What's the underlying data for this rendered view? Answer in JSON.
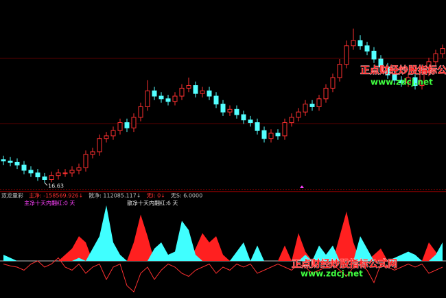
{
  "chart_data": [
    {
      "type": "candlestick",
      "categories": [
        null,
        null,
        null,
        null,
        null,
        null,
        null,
        null,
        null,
        null,
        null,
        null,
        null,
        null,
        null,
        null,
        null,
        null,
        null,
        null,
        null,
        null,
        null,
        null,
        null,
        null,
        null,
        null,
        null,
        null,
        null,
        null,
        null,
        null,
        null,
        null,
        null,
        null,
        null,
        null,
        null,
        null,
        null,
        null,
        null,
        null,
        null,
        null,
        null,
        null,
        null,
        null,
        null,
        null,
        null,
        null,
        null,
        null,
        null,
        null,
        null,
        null,
        null,
        null,
        null
      ],
      "open": [
        17.5,
        17.45,
        17.4,
        17.3,
        17.1,
        17.0,
        16.85,
        16.75,
        16.9,
        17.0,
        17.0,
        17.1,
        17.2,
        17.7,
        17.8,
        18.3,
        18.4,
        18.6,
        18.9,
        18.7,
        19.1,
        19.5,
        20.1,
        19.9,
        19.8,
        19.7,
        19.9,
        20.2,
        20.3,
        20.0,
        20.1,
        19.9,
        19.6,
        19.3,
        19.4,
        19.2,
        19.0,
        18.9,
        18.6,
        18.3,
        18.5,
        18.4,
        18.9,
        19.1,
        19.3,
        19.6,
        19.5,
        19.8,
        20.2,
        20.6,
        21.1,
        21.8,
        22.0,
        21.8,
        21.6,
        21.3,
        21.0,
        20.7,
        20.5,
        20.4,
        20.6,
        20.3,
        20.8,
        21.2,
        21.5
      ],
      "high": [
        17.65,
        17.6,
        17.55,
        17.45,
        17.25,
        17.15,
        17.0,
        17.05,
        17.15,
        17.15,
        17.25,
        17.35,
        17.85,
        17.95,
        18.45,
        18.55,
        18.75,
        19.05,
        19.05,
        19.25,
        19.65,
        20.5,
        20.25,
        20.05,
        19.95,
        20.05,
        20.35,
        20.6,
        20.45,
        20.25,
        20.25,
        20.05,
        19.75,
        19.55,
        19.55,
        19.35,
        19.15,
        19.05,
        18.75,
        18.65,
        18.65,
        19.05,
        19.25,
        19.45,
        19.75,
        19.75,
        19.95,
        20.35,
        20.75,
        21.3,
        22.0,
        22.45,
        22.2,
        21.95,
        21.75,
        21.45,
        21.15,
        20.85,
        20.65,
        20.75,
        20.75,
        20.95,
        21.35,
        21.65,
        21.85
      ],
      "low": [
        17.3,
        17.25,
        17.15,
        16.95,
        16.85,
        16.7,
        16.63,
        16.65,
        16.75,
        16.85,
        16.85,
        16.95,
        17.05,
        17.55,
        17.65,
        18.15,
        18.25,
        18.45,
        18.55,
        18.55,
        18.95,
        19.35,
        19.75,
        19.65,
        19.55,
        19.55,
        19.75,
        20.05,
        19.85,
        19.85,
        19.75,
        19.45,
        19.15,
        19.15,
        19.05,
        18.85,
        18.75,
        18.45,
        18.15,
        18.15,
        18.25,
        18.25,
        18.75,
        18.95,
        19.15,
        19.35,
        19.35,
        19.65,
        20.05,
        20.45,
        20.95,
        21.65,
        21.65,
        21.45,
        21.15,
        20.85,
        20.55,
        20.35,
        20.25,
        20.25,
        20.15,
        20.15,
        20.65,
        21.05,
        21.35
      ],
      "close": [
        17.45,
        17.4,
        17.3,
        17.1,
        17.0,
        16.85,
        16.75,
        16.9,
        17.0,
        17.0,
        17.1,
        17.2,
        17.7,
        17.8,
        18.3,
        18.4,
        18.6,
        18.9,
        18.7,
        19.1,
        19.5,
        20.1,
        19.9,
        19.8,
        19.7,
        19.9,
        20.2,
        20.3,
        20.0,
        20.1,
        19.9,
        19.6,
        19.3,
        19.4,
        19.2,
        19.0,
        18.9,
        18.6,
        18.3,
        18.5,
        18.4,
        18.9,
        19.1,
        19.3,
        19.6,
        19.5,
        19.8,
        20.2,
        20.6,
        21.1,
        21.8,
        22.0,
        21.8,
        21.6,
        21.3,
        21.0,
        20.7,
        20.5,
        20.4,
        20.6,
        20.3,
        20.8,
        21.2,
        21.5,
        21.7
      ],
      "ylim": [
        16.4,
        23.4
      ],
      "up_color": "#ff3030",
      "down_color": "#54ffff",
      "low_label_index": 6
    },
    {
      "type": "area",
      "categories": [
        null,
        null,
        null,
        null,
        null,
        null,
        null,
        null,
        null,
        null,
        null,
        null,
        null,
        null,
        null,
        null,
        null,
        null,
        null,
        null,
        null,
        null,
        null,
        null,
        null,
        null,
        null,
        null,
        null,
        null,
        null,
        null,
        null,
        null,
        null,
        null,
        null,
        null,
        null,
        null,
        null,
        null,
        null,
        null,
        null,
        null,
        null,
        null,
        null,
        null,
        null,
        null,
        null,
        null,
        null,
        null,
        null,
        null,
        null,
        null,
        null,
        null,
        null,
        null,
        null
      ],
      "ylim": [
        -60,
        100
      ],
      "series": [
        {
          "color": "#ff2020",
          "values": [
            5,
            0,
            0,
            0,
            0,
            0,
            0,
            0,
            0,
            10,
            20,
            40,
            30,
            0,
            0,
            25,
            10,
            0,
            0,
            30,
            75,
            40,
            0,
            0,
            0,
            0,
            0,
            0,
            20,
            45,
            30,
            40,
            10,
            0,
            0,
            0,
            0,
            0,
            0,
            0,
            0,
            25,
            0,
            45,
            15,
            0,
            0,
            0,
            0,
            40,
            80,
            30,
            0,
            0,
            10,
            20,
            0,
            0,
            0,
            0,
            0,
            0,
            30,
            15,
            0
          ]
        },
        {
          "color": "#40ffff",
          "values": [
            10,
            5,
            0,
            0,
            0,
            0,
            0,
            0,
            0,
            0,
            0,
            5,
            0,
            20,
            40,
            90,
            30,
            10,
            0,
            0,
            0,
            0,
            20,
            30,
            10,
            15,
            65,
            50,
            10,
            0,
            0,
            0,
            0,
            0,
            15,
            30,
            0,
            25,
            0,
            0,
            0,
            0,
            0,
            0,
            10,
            0,
            25,
            10,
            25,
            0,
            0,
            0,
            40,
            20,
            0,
            0,
            0,
            5,
            10,
            15,
            10,
            0,
            0,
            10,
            30
          ]
        },
        {
          "type": "line",
          "color": "#ff3030",
          "values": [
            -5,
            -8,
            -10,
            -15,
            -5,
            0,
            -10,
            -5,
            5,
            -10,
            -15,
            -5,
            -20,
            -10,
            -5,
            -30,
            -10,
            -5,
            -40,
            -50,
            -20,
            -10,
            -30,
            -15,
            -5,
            -10,
            -20,
            -25,
            -15,
            -10,
            -5,
            -20,
            -10,
            -15,
            -5,
            -10,
            -5,
            -20,
            -15,
            -10,
            -5,
            -10,
            -15,
            -5,
            -10,
            -20,
            -15,
            -10,
            -5,
            -15,
            -25,
            -10,
            -5,
            -15,
            -35,
            -5,
            -10,
            -15,
            -10,
            -5,
            -10,
            -5,
            -20,
            -15,
            -10
          ]
        }
      ]
    }
  ],
  "indicator_header": [
    {
      "text": "双龙量彩",
      "color": "#c0c0c0"
    },
    {
      "text": "主净: -158569.926↓",
      "color": "#ff3030"
    },
    {
      "text": "散净: 112085.117↓",
      "color": "#c0c0c0"
    },
    {
      "text": "无I: 0↓",
      "color": "#ff3030"
    },
    {
      "text": "无S: 6.0000",
      "color": "#c0c0c0"
    }
  ],
  "indicator_notes": [
    {
      "text": "主净十天内翻红:0 天",
      "color": "#ff40ff"
    },
    {
      "text": "散净十天内翻红:6 天",
      "color": "#e0e0e0"
    }
  ],
  "watermarks": [
    {
      "text": "正点财经炒股指标公式网",
      "url": "www.zdcj.net"
    },
    {
      "text": "正点财经炒股指标公式网",
      "url": "www.zdcj.net"
    }
  ]
}
